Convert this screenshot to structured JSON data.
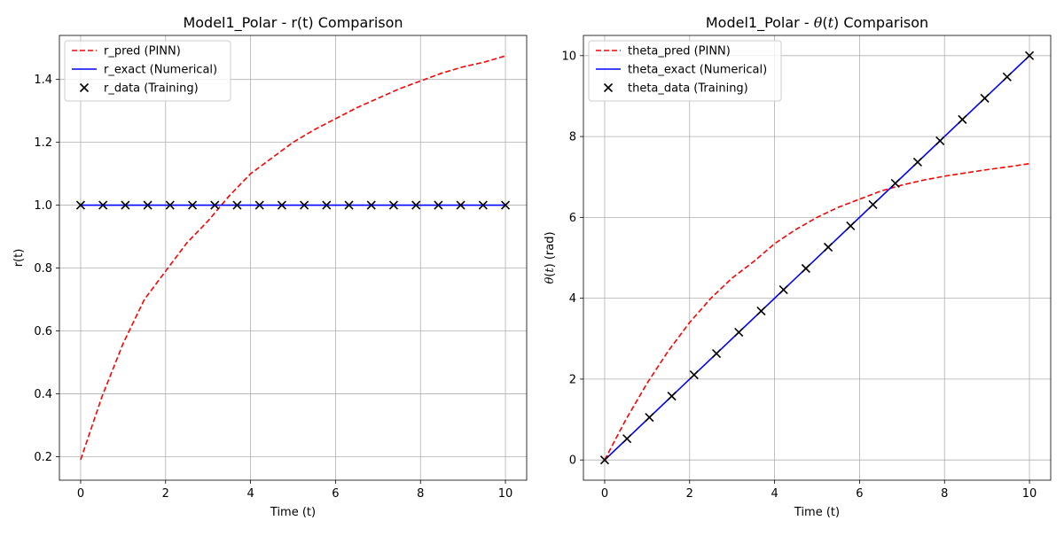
{
  "chart_data": [
    {
      "type": "line",
      "title": "Model1_Polar - r(t) Comparison",
      "title_mode": "plain",
      "xlabel": "Time (t)",
      "ylabel": "r(t)",
      "ylabel_mode": "plain",
      "xlim": [
        -0.5,
        10.5
      ],
      "ylim": [
        0.125,
        1.54
      ],
      "xticks": [
        0,
        2,
        4,
        6,
        8,
        10
      ],
      "yticks": [
        0.2,
        0.4,
        0.6,
        0.8,
        1.0,
        1.2,
        1.4
      ],
      "xtick_labels": [
        "0",
        "2",
        "4",
        "6",
        "8",
        "10"
      ],
      "ytick_labels": [
        "0.2",
        "0.4",
        "0.6",
        "0.8",
        "1.0",
        "1.2",
        "1.4"
      ],
      "grid": true,
      "legend_position": "upper-left",
      "series": [
        {
          "name": "r_pred (PINN)",
          "kind": "dashed-line",
          "color": "#ff0000",
          "x": [
            0,
            0.5,
            1,
            1.5,
            2,
            2.5,
            3,
            3.5,
            4,
            4.5,
            5,
            5.5,
            6,
            6.5,
            7,
            7.5,
            8,
            8.5,
            9,
            9.5,
            10
          ],
          "y": [
            0.19,
            0.39,
            0.56,
            0.7,
            0.79,
            0.88,
            0.95,
            1.03,
            1.1,
            1.15,
            1.2,
            1.24,
            1.275,
            1.31,
            1.34,
            1.37,
            1.395,
            1.42,
            1.44,
            1.455,
            1.475
          ]
        },
        {
          "name": "r_exact (Numerical)",
          "kind": "solid-line",
          "color": "#0000ff",
          "x": [
            0,
            10
          ],
          "y": [
            1.0,
            1.0
          ]
        },
        {
          "name": "r_data (Training)",
          "kind": "x-markers",
          "color": "#000000",
          "x": [
            0,
            0.526,
            1.053,
            1.579,
            2.105,
            2.632,
            3.158,
            3.684,
            4.211,
            4.737,
            5.263,
            5.789,
            6.316,
            6.842,
            7.368,
            7.895,
            8.421,
            8.947,
            9.474,
            10
          ],
          "y": [
            1.0,
            1.0,
            1.0,
            1.0,
            1.0,
            1.0,
            1.0,
            1.0,
            1.0,
            1.0,
            1.0,
            1.0,
            1.0,
            1.0,
            1.0,
            1.0,
            1.0,
            1.0,
            1.0,
            1.0
          ]
        }
      ]
    },
    {
      "type": "line",
      "title": "Model1_Polar - θ(t) Comparison",
      "title_mode": "theta",
      "xlabel": "Time (t)",
      "ylabel": "θ(t) (rad)",
      "ylabel_mode": "theta",
      "xlim": [
        -0.5,
        10.5
      ],
      "ylim": [
        -0.5,
        10.5
      ],
      "xticks": [
        0,
        2,
        4,
        6,
        8,
        10
      ],
      "yticks": [
        0,
        2,
        4,
        6,
        8,
        10
      ],
      "xtick_labels": [
        "0",
        "2",
        "4",
        "6",
        "8",
        "10"
      ],
      "ytick_labels": [
        "0",
        "2",
        "4",
        "6",
        "8",
        "10"
      ],
      "grid": true,
      "legend_position": "upper-left",
      "series": [
        {
          "name": "theta_pred (PINN)",
          "kind": "dashed-line",
          "color": "#ff0000",
          "x": [
            0,
            0.5,
            1,
            1.5,
            2,
            2.5,
            3,
            3.5,
            4,
            4.5,
            5,
            5.5,
            6,
            6.5,
            7,
            7.5,
            8,
            8.5,
            9,
            9.5,
            10
          ],
          "y": [
            0.0,
            1.0,
            1.9,
            2.7,
            3.4,
            4.0,
            4.5,
            4.9,
            5.35,
            5.7,
            6.0,
            6.25,
            6.45,
            6.65,
            6.8,
            6.92,
            7.02,
            7.1,
            7.18,
            7.25,
            7.33
          ]
        },
        {
          "name": "theta_exact (Numerical)",
          "kind": "solid-line",
          "color": "#0000ff",
          "x": [
            0,
            10
          ],
          "y": [
            0,
            10
          ]
        },
        {
          "name": "theta_data (Training)",
          "kind": "x-markers",
          "color": "#000000",
          "x": [
            0,
            0.526,
            1.053,
            1.579,
            2.105,
            2.632,
            3.158,
            3.684,
            4.211,
            4.737,
            5.263,
            5.789,
            6.316,
            6.842,
            7.368,
            7.895,
            8.421,
            8.947,
            9.474,
            10
          ],
          "y": [
            0,
            0.526,
            1.053,
            1.579,
            2.105,
            2.632,
            3.158,
            3.684,
            4.211,
            4.737,
            5.263,
            5.789,
            6.316,
            6.842,
            7.368,
            7.895,
            8.421,
            8.947,
            9.474,
            10
          ]
        }
      ]
    }
  ]
}
